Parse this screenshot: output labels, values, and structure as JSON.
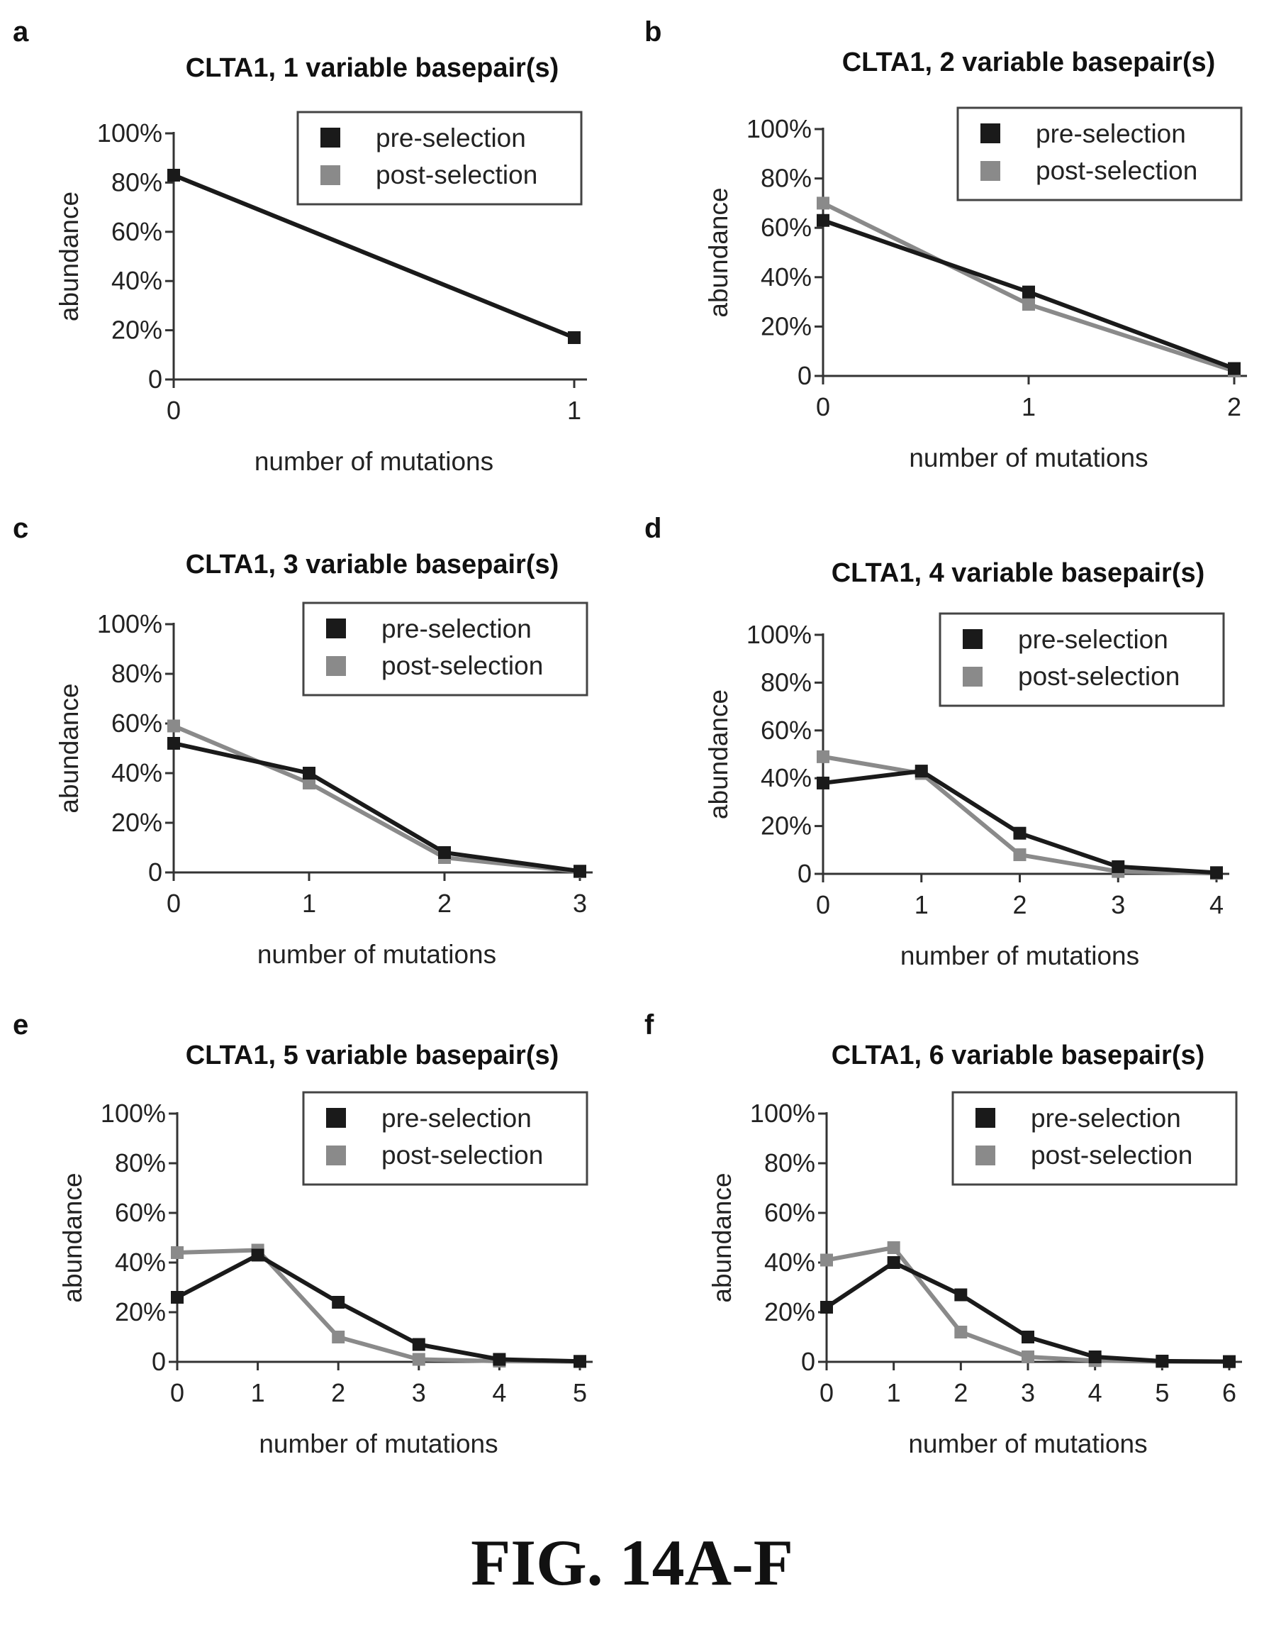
{
  "figure": {
    "caption": "FIG. 14A-F"
  },
  "legend": {
    "pre_label": "pre-selection",
    "post_label": "post-selection"
  },
  "colors": {
    "pre": "#1a1a1a",
    "post": "#8a8a8a",
    "axis": "#333333"
  },
  "chart_data": [
    {
      "panel": "a",
      "type": "line",
      "title": "CLTA1, 1 variable basepair(s)",
      "xlabel": "number of mutations",
      "ylabel": "abundance",
      "x": [
        0,
        1
      ],
      "xticks": [
        "0",
        "1"
      ],
      "yticks": [
        "0",
        "20%",
        "40%",
        "60%",
        "80%",
        "100%"
      ],
      "ylim": [
        0,
        100
      ],
      "legend_position": "top-right",
      "series": [
        {
          "name": "pre-selection",
          "values": [
            83,
            17
          ]
        },
        {
          "name": "post-selection",
          "values": [
            83,
            17
          ]
        }
      ]
    },
    {
      "panel": "b",
      "type": "line",
      "title": "CLTA1, 2 variable basepair(s)",
      "xlabel": "number of mutations",
      "ylabel": "abundance",
      "x": [
        0,
        1,
        2
      ],
      "xticks": [
        "0",
        "1",
        "2"
      ],
      "yticks": [
        "0",
        "20%",
        "40%",
        "60%",
        "80%",
        "100%"
      ],
      "ylim": [
        0,
        100
      ],
      "legend_position": "top-right",
      "series": [
        {
          "name": "pre-selection",
          "values": [
            63,
            34,
            3
          ]
        },
        {
          "name": "post-selection",
          "values": [
            70,
            29,
            2
          ]
        }
      ]
    },
    {
      "panel": "c",
      "type": "line",
      "title": "CLTA1, 3 variable basepair(s)",
      "xlabel": "number of mutations",
      "ylabel": "abundance",
      "x": [
        0,
        1,
        2,
        3
      ],
      "xticks": [
        "0",
        "1",
        "2",
        "3"
      ],
      "yticks": [
        "0",
        "20%",
        "40%",
        "60%",
        "80%",
        "100%"
      ],
      "ylim": [
        0,
        100
      ],
      "legend_position": "top-right",
      "series": [
        {
          "name": "pre-selection",
          "values": [
            52,
            40,
            8,
            0.5
          ]
        },
        {
          "name": "post-selection",
          "values": [
            59,
            36,
            6,
            0.3
          ]
        }
      ]
    },
    {
      "panel": "d",
      "type": "line",
      "title": "CLTA1, 4 variable basepair(s)",
      "xlabel": "number of mutations",
      "ylabel": "abundance",
      "x": [
        0,
        1,
        2,
        3,
        4
      ],
      "xticks": [
        "0",
        "1",
        "2",
        "3",
        "4"
      ],
      "yticks": [
        "0",
        "20%",
        "40%",
        "60%",
        "80%",
        "100%"
      ],
      "ylim": [
        0,
        100
      ],
      "legend_position": "top-right",
      "series": [
        {
          "name": "pre-selection",
          "values": [
            38,
            43,
            17,
            3,
            0.5
          ]
        },
        {
          "name": "post-selection",
          "values": [
            49,
            42,
            8,
            1,
            0.2
          ]
        }
      ]
    },
    {
      "panel": "e",
      "type": "line",
      "title": "CLTA1, 5 variable basepair(s)",
      "xlabel": "number of mutations",
      "ylabel": "abundance",
      "x": [
        0,
        1,
        2,
        3,
        4,
        5
      ],
      "xticks": [
        "0",
        "1",
        "2",
        "3",
        "4",
        "5"
      ],
      "yticks": [
        "0",
        "20%",
        "40%",
        "60%",
        "80%",
        "100%"
      ],
      "ylim": [
        0,
        100
      ],
      "legend_position": "top-right",
      "series": [
        {
          "name": "pre-selection",
          "values": [
            26,
            43,
            24,
            7,
            1,
            0.2
          ]
        },
        {
          "name": "post-selection",
          "values": [
            44,
            45,
            10,
            1,
            0.3,
            0.1
          ]
        }
      ]
    },
    {
      "panel": "f",
      "type": "line",
      "title": "CLTA1, 6 variable basepair(s)",
      "xlabel": "number of mutations",
      "ylabel": "abundance",
      "x": [
        0,
        1,
        2,
        3,
        4,
        5,
        6
      ],
      "xticks": [
        "0",
        "1",
        "2",
        "3",
        "4",
        "5",
        "6"
      ],
      "yticks": [
        "0",
        "20%",
        "40%",
        "60%",
        "80%",
        "100%"
      ],
      "ylim": [
        0,
        100
      ],
      "legend_position": "top-right",
      "series": [
        {
          "name": "pre-selection",
          "values": [
            22,
            40,
            27,
            10,
            2,
            0.3,
            0.1
          ]
        },
        {
          "name": "post-selection",
          "values": [
            41,
            46,
            12,
            2,
            0.5,
            0.1,
            0.1
          ]
        }
      ]
    }
  ]
}
